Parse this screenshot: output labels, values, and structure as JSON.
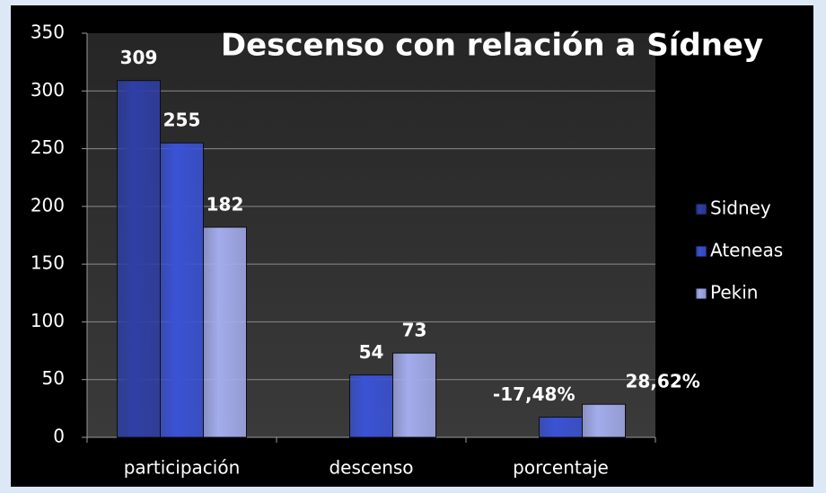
{
  "chart_data": {
    "type": "bar",
    "title": "Descenso con relación a Sídney",
    "categories": [
      "participación",
      "descenso",
      "porcentaje"
    ],
    "series": [
      {
        "name": "Sidney",
        "color": "#2f3fa6",
        "values": [
          309,
          null,
          null
        ]
      },
      {
        "name": "Ateneas",
        "color": "#3a52d6",
        "values": [
          255,
          54,
          17.48
        ],
        "value_labels": [
          "255",
          "54",
          "-17,48%"
        ]
      },
      {
        "name": "Pekin",
        "color": "#a3acec",
        "values": [
          182,
          73,
          28.62
        ],
        "value_labels": [
          "182",
          "73",
          "28,62%"
        ]
      }
    ],
    "ylim": [
      0,
      350
    ],
    "yticks": [
      0,
      50,
      100,
      150,
      200,
      250,
      300,
      350
    ],
    "grid": true,
    "legend": "right"
  }
}
